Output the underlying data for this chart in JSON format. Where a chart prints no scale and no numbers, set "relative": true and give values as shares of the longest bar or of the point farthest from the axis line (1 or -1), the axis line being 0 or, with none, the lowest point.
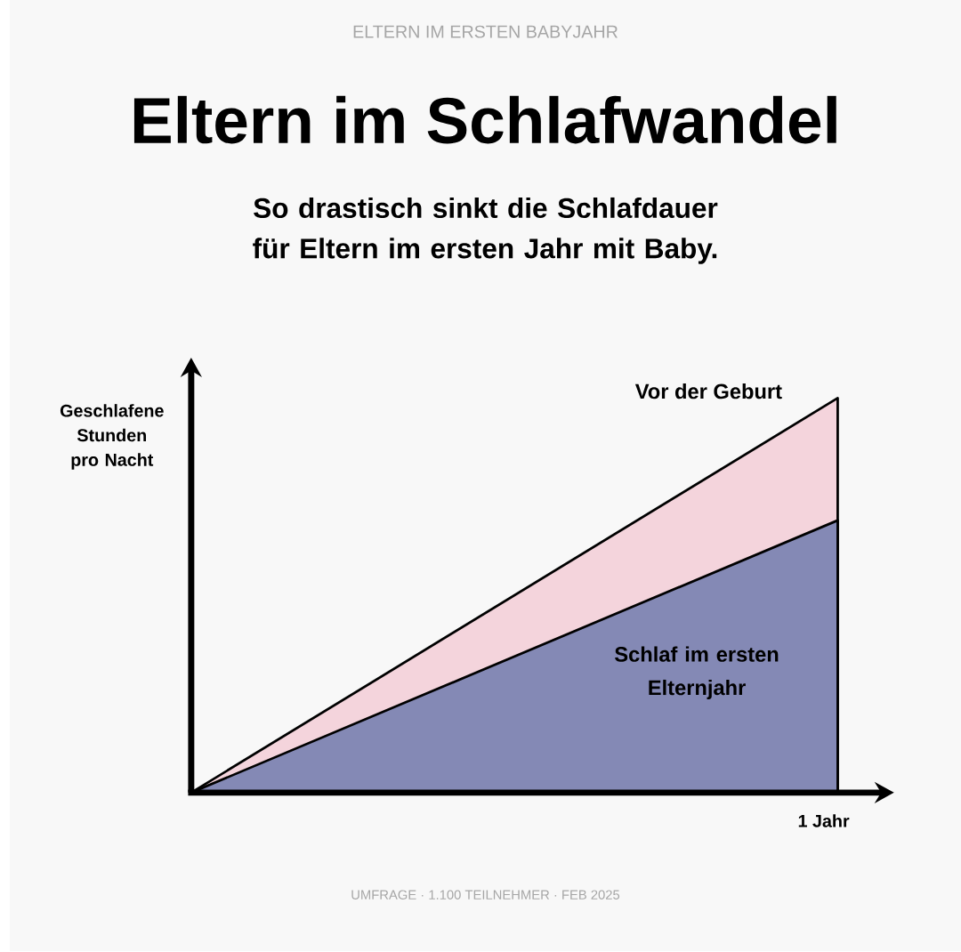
{
  "chart_data": {
    "type": "area",
    "relative": true,
    "title": "Eltern im Schlafwandel",
    "subtitle": "So drastisch sinkt die Schlafdauer für Eltern im ersten Jahr mit Baby.",
    "ylabel": "Geschlafene Stunden pro Nacht",
    "xlabel": "1 Jahr",
    "categories": [
      null,
      null
    ],
    "series": [
      {
        "name": "Vor der Geburt",
        "color": "#f4d4dc",
        "values": [
          0,
          1
        ]
      },
      {
        "name": "Schlaf im ersten Elternjahr",
        "color": "#8489b5",
        "values": [
          0,
          0.69
        ]
      }
    ],
    "annotations": [
      "ELTERN IM ERSTEN BABYJAHR",
      "UMFRAGE · 1.100 TEILNEHMER · FEB 2025"
    ]
  }
}
